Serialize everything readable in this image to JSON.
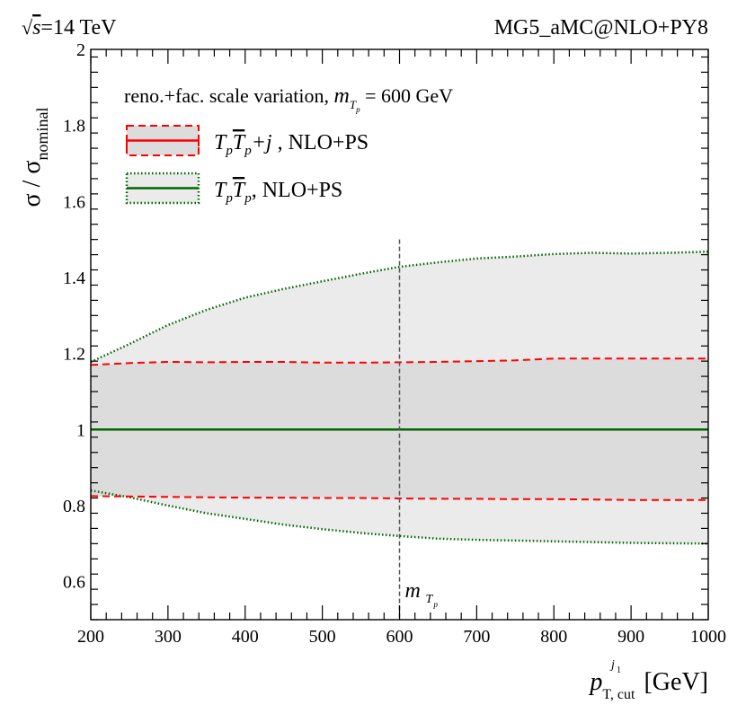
{
  "chart_data": {
    "type": "area",
    "header_left": "√s=14 TeV",
    "header_right": "MG5_aMC@NLO+PY8",
    "ylabel": "σ / σ_nominal",
    "xlabel": "p_T,cut^j1 [GeV]",
    "xlim": [
      200,
      1000
    ],
    "ylim": [
      0.5,
      2.0
    ],
    "x_ticks": [
      200,
      300,
      400,
      500,
      600,
      700,
      800,
      900,
      1000
    ],
    "x_tick_labels": [
      "200",
      "300",
      "400",
      "500",
      "600",
      "700",
      "800",
      "900",
      "1000"
    ],
    "y_ticks": [
      0.6,
      0.8,
      1.0,
      1.2,
      1.4,
      1.6,
      1.8,
      2.0
    ],
    "y_tick_labels": [
      "0.6",
      "0.8",
      "1",
      "1.2",
      "1.4",
      "1.6",
      "1.8",
      "2"
    ],
    "legend_title": "reno.+fac. scale variation, m_Tp = 600 GeV",
    "vline": {
      "x": 600,
      "label": "m_Tp"
    },
    "x": [
      200,
      250,
      300,
      350,
      400,
      450,
      500,
      550,
      600,
      650,
      700,
      750,
      800,
      850,
      900,
      950,
      1000
    ],
    "series": [
      {
        "name": "TpTp+j, NLO+PS",
        "legend_label": "T_p T̄_p +j , NLO+PS",
        "color": "#ff0000",
        "style": "dashed",
        "central": [
          1.0,
          1.0,
          1.0,
          1.0,
          1.0,
          1.0,
          1.0,
          1.0,
          1.0,
          1.0,
          1.0,
          1.0,
          1.0,
          1.0,
          1.0,
          1.0,
          1.0
        ],
        "upper": [
          1.17,
          1.175,
          1.178,
          1.177,
          1.178,
          1.178,
          1.176,
          1.176,
          1.177,
          1.178,
          1.18,
          1.182,
          1.187,
          1.187,
          1.187,
          1.187,
          1.187
        ],
        "lower": [
          0.825,
          0.824,
          0.823,
          0.822,
          0.821,
          0.821,
          0.82,
          0.82,
          0.819,
          0.818,
          0.818,
          0.817,
          0.817,
          0.816,
          0.815,
          0.815,
          0.815
        ]
      },
      {
        "name": "TpTp, NLO+PS",
        "legend_label": "T_p T̄_p , NLO+PS",
        "color": "#006400",
        "style": "dotted",
        "central": [
          1.0,
          1.0,
          1.0,
          1.0,
          1.0,
          1.0,
          1.0,
          1.0,
          1.0,
          1.0,
          1.0,
          1.0,
          1.0,
          1.0,
          1.0,
          1.0,
          1.0
        ],
        "upper": [
          1.178,
          1.225,
          1.275,
          1.315,
          1.347,
          1.37,
          1.39,
          1.41,
          1.428,
          1.44,
          1.45,
          1.455,
          1.462,
          1.465,
          1.463,
          1.465,
          1.468
        ],
        "lower": [
          0.84,
          0.822,
          0.8,
          0.78,
          0.765,
          0.75,
          0.738,
          0.728,
          0.72,
          0.713,
          0.71,
          0.708,
          0.706,
          0.704,
          0.702,
          0.701,
          0.7
        ]
      }
    ]
  },
  "colors": {
    "outer_band_fill": "#ebebeb",
    "inner_band_fill": "#dcdcdc",
    "vline_color": "#555555"
  }
}
